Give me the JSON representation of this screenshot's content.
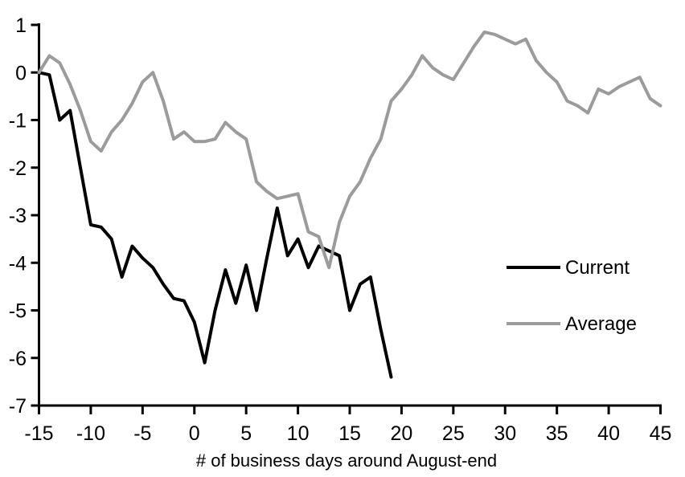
{
  "chart_data": {
    "type": "line",
    "title": "",
    "xlabel": "# of business days around August-end",
    "ylabel": "",
    "xlim": [
      -15,
      45
    ],
    "ylim": [
      -7,
      1
    ],
    "x_ticks": [
      -15,
      -10,
      -5,
      0,
      5,
      10,
      15,
      20,
      25,
      30,
      35,
      40,
      45
    ],
    "y_ticks": [
      1,
      0,
      -1,
      -2,
      -3,
      -4,
      -5,
      -6,
      -7
    ],
    "grid": false,
    "legend_position": "right-middle",
    "axis_color": "#000000",
    "series": [
      {
        "name": "Current",
        "color": "#000000",
        "x": [
          -15,
          -14,
          -13,
          -12,
          -11,
          -10,
          -9,
          -8,
          -7,
          -6,
          -5,
          -4,
          -3,
          -2,
          -1,
          0,
          1,
          2,
          3,
          4,
          5,
          6,
          7,
          8,
          9,
          10,
          11,
          12,
          13,
          14,
          15,
          16,
          17,
          18,
          19
        ],
        "values": [
          0,
          -0.05,
          -1,
          -0.8,
          -2,
          -3.2,
          -3.25,
          -3.5,
          -4.3,
          -3.65,
          -3.9,
          -4.1,
          -4.45,
          -4.75,
          -4.8,
          -5.25,
          -6.1,
          -5,
          -4.15,
          -4.85,
          -4.05,
          -5,
          -3.9,
          -2.85,
          -3.85,
          -3.5,
          -4.1,
          -3.65,
          -3.75,
          -3.85,
          -5,
          -4.45,
          -4.3,
          -5.4,
          -6.4
        ]
      },
      {
        "name": "Average",
        "color": "#9b9b9b",
        "x": [
          -15,
          -14,
          -13,
          -12,
          -11,
          -10,
          -9,
          -8,
          -7,
          -6,
          -5,
          -4,
          -3,
          -2,
          -1,
          0,
          1,
          2,
          3,
          4,
          5,
          6,
          7,
          8,
          9,
          10,
          11,
          12,
          13,
          14,
          15,
          16,
          17,
          18,
          19,
          20,
          21,
          22,
          23,
          24,
          25,
          26,
          27,
          28,
          29,
          30,
          31,
          32,
          33,
          34,
          35,
          36,
          37,
          38,
          39,
          40,
          41,
          42,
          43,
          44,
          45
        ],
        "values": [
          0,
          0.35,
          0.2,
          -0.25,
          -0.8,
          -1.45,
          -1.65,
          -1.25,
          -1,
          -0.65,
          -0.2,
          0,
          -0.6,
          -1.4,
          -1.25,
          -1.45,
          -1.45,
          -1.4,
          -1.05,
          -1.25,
          -1.4,
          -2.3,
          -2.5,
          -2.65,
          -2.6,
          -2.55,
          -3.35,
          -3.45,
          -4.1,
          -3.15,
          -2.6,
          -2.3,
          -1.8,
          -1.4,
          -0.6,
          -0.35,
          -0.05,
          0.35,
          0.1,
          -0.05,
          -0.15,
          0.2,
          0.55,
          0.85,
          0.8,
          0.7,
          0.6,
          0.7,
          0.25,
          0,
          -0.2,
          -0.6,
          -0.7,
          -0.85,
          -0.35,
          -0.45,
          -0.3,
          -0.2,
          -0.1,
          -0.55,
          -0.7
        ]
      }
    ]
  }
}
